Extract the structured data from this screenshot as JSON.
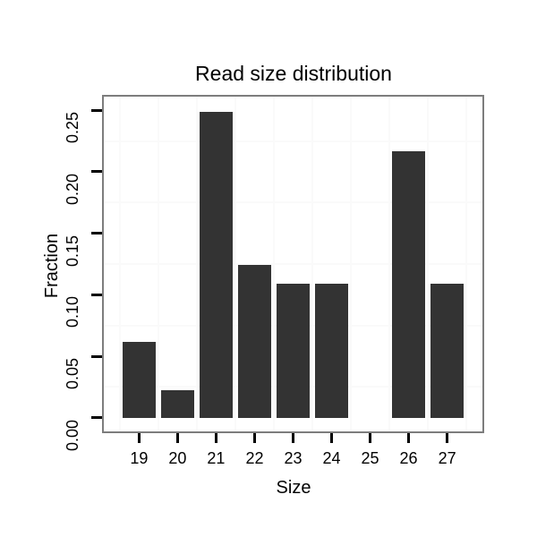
{
  "chart_data": {
    "type": "bar",
    "title": "Read size distribution",
    "xlabel": "Size",
    "ylabel": "Fraction",
    "categories": [
      "19",
      "20",
      "21",
      "22",
      "23",
      "24",
      "25",
      "26",
      "27"
    ],
    "values": [
      0.062,
      0.022,
      0.249,
      0.124,
      0.109,
      0.109,
      0,
      0.217,
      0.109
    ],
    "ylim": [
      0,
      0.25
    ],
    "yticks": {
      "values": [
        0,
        0.05,
        0.1,
        0.15,
        0.2,
        0.25
      ],
      "labels": [
        "0.00",
        "0.05",
        "0.10",
        "0.15",
        "0.20",
        "0.25"
      ]
    },
    "legend": "none",
    "grid": "minor-gridlines-only",
    "colors": {
      "bar": "#333333",
      "panel_border": "#7d7d7d",
      "grid_minor": "#fafafa",
      "tick": "#000000",
      "text": "#000000",
      "background": "#ffffff"
    }
  }
}
